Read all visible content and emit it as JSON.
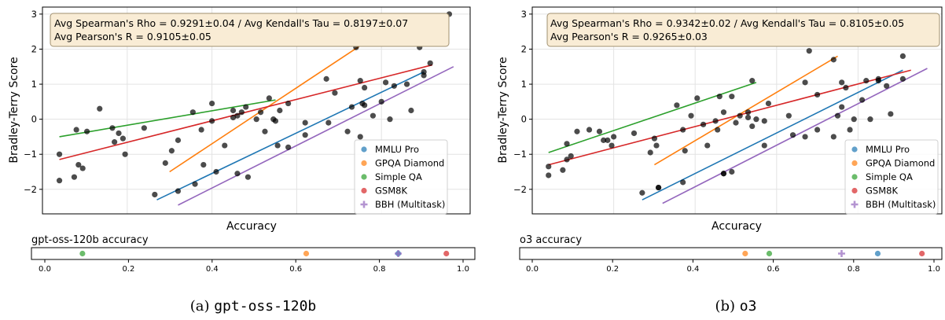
{
  "series_style": [
    {
      "name": "MMLU Pro",
      "color": "#1f77b4",
      "marker": "circle"
    },
    {
      "name": "GPQA Diamond",
      "color": "#ff7f0e",
      "marker": "circle"
    },
    {
      "name": "Simple QA",
      "color": "#2ca02c",
      "marker": "circle"
    },
    {
      "name": "GSM8K",
      "color": "#d62728",
      "marker": "circle"
    },
    {
      "name": "BBH (Multitask)",
      "color": "#9467bd",
      "marker": "plus"
    }
  ],
  "chart_data": [
    {
      "type": "scatter",
      "panel": "a",
      "caption_prefix": "(a) ",
      "caption_model": "gpt-oss-120b",
      "xlabel": "Accuracy",
      "ylabel": "Bradley-Terry Score",
      "xlim": [
        0.0,
        1.0
      ],
      "ylim": [
        -2.7,
        3.2
      ],
      "yticks": [
        -2,
        -1,
        0,
        1,
        2,
        3
      ],
      "grid": true,
      "legend_position": "lower-right",
      "annotation_line1": "Avg Spearman's Rho = 0.9291±0.04 / Avg Kendall's Tau = 0.8197±0.07",
      "annotation_line2": "Avg Pearson's R = 0.9105±0.05",
      "series": [
        {
          "name": "MMLU Pro",
          "x": [
            0.265,
            0.41,
            0.485,
            0.525,
            0.555,
            0.62,
            0.675,
            0.73,
            0.76,
            0.78,
            0.81,
            0.83,
            0.86,
            0.9,
            0.915
          ],
          "y": [
            -2.15,
            -1.5,
            -1.65,
            -0.35,
            -0.75,
            -0.1,
            -0.1,
            0.35,
            0.4,
            0.1,
            1.05,
            0.95,
            1.0,
            1.35,
            1.6
          ],
          "fit": [
            [
              0.27,
              -2.3
            ],
            [
              0.9,
              1.35
            ]
          ]
        },
        {
          "name": "GPQA Diamond",
          "x": [
            0.29,
            0.305,
            0.38,
            0.43,
            0.46,
            0.505,
            0.515,
            0.55,
            0.675,
            0.74,
            0.9
          ],
          "y": [
            -1.25,
            -0.9,
            -1.3,
            -0.75,
            0.1,
            0.0,
            0.2,
            -0.05,
            2.25,
            2.05,
            2.35
          ],
          "fit": [
            [
              0.3,
              -1.5
            ],
            [
              0.75,
              2.1
            ]
          ]
        },
        {
          "name": "Simple QA",
          "x": [
            0.04,
            0.08,
            0.105,
            0.135,
            0.165,
            0.24,
            0.355,
            0.4,
            0.45,
            0.48,
            0.535
          ],
          "y": [
            -1.0,
            -0.3,
            -0.35,
            0.3,
            -0.25,
            -0.25,
            0.2,
            0.45,
            0.25,
            0.35,
            0.6
          ],
          "fit": [
            [
              0.04,
              -0.5
            ],
            [
              0.55,
              0.55
            ]
          ]
        },
        {
          "name": "GSM8K",
          "x": [
            0.04,
            0.075,
            0.085,
            0.095,
            0.17,
            0.18,
            0.19,
            0.195,
            0.32,
            0.375,
            0.4,
            0.45,
            0.47,
            0.545,
            0.56,
            0.58,
            0.67,
            0.69,
            0.75,
            0.76,
            0.9
          ],
          "y": [
            -1.75,
            -1.65,
            -1.3,
            -1.4,
            -0.65,
            -0.4,
            -0.55,
            -1.0,
            -0.6,
            -0.3,
            -0.05,
            0.05,
            0.2,
            0.0,
            0.25,
            0.45,
            1.15,
            0.75,
            1.1,
            0.9,
            1.25
          ],
          "fit": [
            [
              0.04,
              -1.15
            ],
            [
              0.92,
              1.55
            ]
          ]
        },
        {
          "name": "BBH (Multitask)",
          "x": [
            0.32,
            0.36,
            0.46,
            0.58,
            0.62,
            0.72,
            0.75,
            0.755,
            0.8,
            0.82,
            0.87,
            0.89,
            0.96
          ],
          "y": [
            -2.05,
            -1.85,
            -1.55,
            -0.8,
            -0.45,
            -0.35,
            -0.5,
            0.45,
            0.5,
            0.0,
            0.25,
            2.05,
            3.0
          ],
          "fit": [
            [
              0.32,
              -2.45
            ],
            [
              0.97,
              1.5
            ]
          ]
        }
      ],
      "strip": {
        "label": "gpt-oss-120b accuracy",
        "xticks": [
          0.0,
          0.2,
          0.4,
          0.6,
          0.8,
          1.0
        ],
        "points": [
          {
            "series": "Simple QA",
            "x": 0.09
          },
          {
            "series": "GPQA Diamond",
            "x": 0.625
          },
          {
            "series": "MMLU Pro",
            "x": 0.845
          },
          {
            "series": "BBH (Multitask)",
            "x": 0.845
          },
          {
            "series": "GSM8K",
            "x": 0.96
          }
        ]
      }
    },
    {
      "type": "scatter",
      "panel": "b",
      "caption_prefix": "(b) ",
      "caption_model": "o3",
      "xlabel": "Accuracy",
      "ylabel": "Bradley-Terry Score",
      "xlim": [
        0.0,
        1.0
      ],
      "ylim": [
        -2.7,
        3.2
      ],
      "yticks": [
        -2,
        -1,
        0,
        1,
        2,
        3
      ],
      "grid": true,
      "legend_position": "lower-right",
      "annotation_line1": "Avg Spearman's Rho = 0.9342±0.02 / Avg Kendall's Tau = 0.8105±0.05",
      "annotation_line2": "Avg Pearson's R = 0.9265±0.03",
      "series": [
        {
          "name": "MMLU Pro",
          "x": [
            0.27,
            0.31,
            0.47,
            0.49,
            0.54,
            0.57,
            0.63,
            0.67,
            0.75,
            0.79,
            0.82,
            0.85,
            0.87,
            0.91
          ],
          "y": [
            -2.1,
            -1.95,
            -1.55,
            -1.5,
            -0.2,
            -0.75,
            0.1,
            -0.5,
            0.1,
            0.0,
            1.1,
            1.1,
            0.95,
            1.8
          ],
          "fit": [
            [
              0.27,
              -2.3
            ],
            [
              0.91,
              1.4
            ]
          ]
        },
        {
          "name": "GPQA Diamond",
          "x": [
            0.29,
            0.305,
            0.375,
            0.43,
            0.455,
            0.51,
            0.53,
            0.57,
            0.68,
            0.74
          ],
          "y": [
            -0.95,
            -0.75,
            -0.9,
            -0.75,
            -0.3,
            0.1,
            0.2,
            -0.05,
            1.95,
            1.7
          ],
          "fit": [
            [
              0.3,
              -1.3
            ],
            [
              0.75,
              1.8
            ]
          ]
        },
        {
          "name": "Simple QA",
          "x": [
            0.04,
            0.085,
            0.11,
            0.14,
            0.165,
            0.25,
            0.355,
            0.405,
            0.46,
            0.49,
            0.54
          ],
          "y": [
            -1.35,
            -0.7,
            -0.35,
            -0.3,
            -0.35,
            -0.4,
            0.4,
            0.6,
            0.65,
            0.65,
            1.1
          ],
          "fit": [
            [
              0.04,
              -0.95
            ],
            [
              0.55,
              1.05
            ]
          ]
        },
        {
          "name": "GSM8K",
          "x": [
            0.04,
            0.075,
            0.085,
            0.095,
            0.175,
            0.185,
            0.195,
            0.2,
            0.3,
            0.37,
            0.39,
            0.42,
            0.45,
            0.47,
            0.5,
            0.53,
            0.55,
            0.58,
            0.67,
            0.7,
            0.76,
            0.77,
            0.85,
            0.9,
            0.91
          ],
          "y": [
            -1.6,
            -1.45,
            -1.15,
            -1.05,
            -0.6,
            -0.6,
            -0.75,
            -0.5,
            -0.55,
            -0.3,
            0.1,
            -0.15,
            -0.05,
            0.2,
            -0.1,
            0.05,
            0.0,
            0.45,
            1.05,
            0.7,
            1.05,
            0.9,
            1.15,
            2.15,
            1.15
          ],
          "fit": [
            [
              0.04,
              -1.3
            ],
            [
              0.93,
              1.4
            ]
          ]
        },
        {
          "name": "BBH (Multitask)",
          "x": [
            0.31,
            0.37,
            0.47,
            0.64,
            0.7,
            0.74,
            0.76,
            0.78,
            0.81,
            0.83,
            0.88,
            0.9,
            0.96
          ],
          "y": [
            -1.95,
            -1.8,
            -1.55,
            -0.45,
            -0.3,
            -0.5,
            0.35,
            -0.3,
            0.55,
            0.0,
            0.15,
            2.25,
            2.95
          ],
          "fit": [
            [
              0.32,
              -2.4
            ],
            [
              0.97,
              1.45
            ]
          ]
        }
      ],
      "strip": {
        "label": "o3 accuracy",
        "xticks": [
          0.0,
          0.2,
          0.4,
          0.6,
          0.8,
          1.0
        ],
        "points": [
          {
            "series": "GPQA Diamond",
            "x": 0.53
          },
          {
            "series": "Simple QA",
            "x": 0.59
          },
          {
            "series": "BBH (Multitask)",
            "x": 0.77
          },
          {
            "series": "MMLU Pro",
            "x": 0.86
          },
          {
            "series": "GSM8K",
            "x": 0.97
          }
        ]
      }
    }
  ]
}
